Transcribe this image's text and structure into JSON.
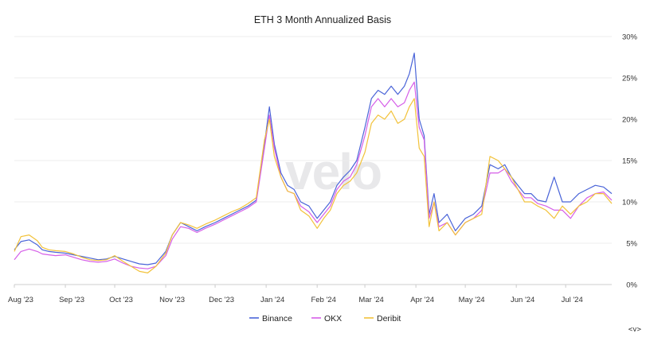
{
  "brand": {
    "watermark": "velo",
    "corner_label": "<v>"
  },
  "chart_data": {
    "type": "line",
    "title": "ETH 3 Month Annualized Basis",
    "xlabel": "",
    "ylabel": "",
    "ylim": [
      0,
      30
    ],
    "y_ticks": [
      "0%",
      "5%",
      "10%",
      "15%",
      "20%",
      "25%",
      "30%"
    ],
    "x_ticks": [
      {
        "label": "Aug '23",
        "date": "2023-08-01"
      },
      {
        "label": "Sep '23",
        "date": "2023-09-01"
      },
      {
        "label": "Oct '23",
        "date": "2023-10-01"
      },
      {
        "label": "Nov '23",
        "date": "2023-11-01"
      },
      {
        "label": "Dec '23",
        "date": "2023-12-01"
      },
      {
        "label": "Jan '24",
        "date": "2024-01-01"
      },
      {
        "label": "Feb '24",
        "date": "2024-02-01"
      },
      {
        "label": "Mar '24",
        "date": "2024-03-01"
      },
      {
        "label": "Apr '24",
        "date": "2024-04-01"
      },
      {
        "label": "May '24",
        "date": "2024-05-01"
      },
      {
        "label": "Jun '24",
        "date": "2024-06-01"
      },
      {
        "label": "Jul '24",
        "date": "2024-07-01"
      }
    ],
    "x_range": [
      "2023-08-01",
      "2024-07-29"
    ],
    "grid": true,
    "legend_position": "bottom-center",
    "x": [
      "2023-08-01",
      "2023-08-05",
      "2023-08-10",
      "2023-08-15",
      "2023-08-18",
      "2023-08-22",
      "2023-08-26",
      "2023-09-01",
      "2023-09-06",
      "2023-09-11",
      "2023-09-16",
      "2023-09-21",
      "2023-09-26",
      "2023-10-01",
      "2023-10-06",
      "2023-10-11",
      "2023-10-16",
      "2023-10-21",
      "2023-10-26",
      "2023-11-01",
      "2023-11-05",
      "2023-11-10",
      "2023-11-15",
      "2023-11-20",
      "2023-11-25",
      "2023-12-01",
      "2023-12-06",
      "2023-12-11",
      "2023-12-16",
      "2023-12-21",
      "2023-12-26",
      "2023-12-31",
      "2024-01-03",
      "2024-01-06",
      "2024-01-10",
      "2024-01-14",
      "2024-01-18",
      "2024-01-22",
      "2024-01-27",
      "2024-02-01",
      "2024-02-05",
      "2024-02-09",
      "2024-02-13",
      "2024-02-17",
      "2024-02-21",
      "2024-02-25",
      "2024-03-01",
      "2024-03-05",
      "2024-03-09",
      "2024-03-13",
      "2024-03-17",
      "2024-03-21",
      "2024-03-25",
      "2024-03-28",
      "2024-03-31",
      "2024-04-03",
      "2024-04-06",
      "2024-04-09",
      "2024-04-12",
      "2024-04-15",
      "2024-04-20",
      "2024-04-25",
      "2024-05-01",
      "2024-05-06",
      "2024-05-11",
      "2024-05-16",
      "2024-05-21",
      "2024-05-25",
      "2024-05-29",
      "2024-06-02",
      "2024-06-06",
      "2024-06-10",
      "2024-06-14",
      "2024-06-19",
      "2024-06-24",
      "2024-06-29",
      "2024-07-04",
      "2024-07-09",
      "2024-07-14",
      "2024-07-19",
      "2024-07-24",
      "2024-07-29"
    ],
    "series": [
      {
        "name": "Binance",
        "color": "#4a64d8",
        "values": [
          4.2,
          5.2,
          5.4,
          4.8,
          4.2,
          4.0,
          3.9,
          3.8,
          3.6,
          3.4,
          3.2,
          3.0,
          3.1,
          3.4,
          3.1,
          2.8,
          2.5,
          2.4,
          2.6,
          4.0,
          6.0,
          7.5,
          7.0,
          6.5,
          7.0,
          7.5,
          8.0,
          8.5,
          9.0,
          9.5,
          10.2,
          17.0,
          21.5,
          17.0,
          13.5,
          12.0,
          11.5,
          10.0,
          9.5,
          8.0,
          9.0,
          10.0,
          12.0,
          13.0,
          13.8,
          15.0,
          19.0,
          22.5,
          23.5,
          23.0,
          24.0,
          23.0,
          24.0,
          25.5,
          28.0,
          20.0,
          18.0,
          8.5,
          11.0,
          7.5,
          8.5,
          6.5,
          8.0,
          8.5,
          9.5,
          14.5,
          14.0,
          14.5,
          13.0,
          12.0,
          11.0,
          11.0,
          10.2,
          10.0,
          13.0,
          10.0,
          10.0,
          11.0,
          11.5,
          12.0,
          11.8,
          11.0
        ]
      },
      {
        "name": "OKX",
        "color": "#d55ee8",
        "values": [
          3.0,
          4.0,
          4.3,
          4.0,
          3.7,
          3.6,
          3.5,
          3.6,
          3.3,
          3.0,
          2.8,
          2.7,
          2.8,
          3.1,
          2.6,
          2.2,
          2.0,
          1.9,
          2.2,
          3.5,
          5.5,
          7.0,
          6.8,
          6.3,
          6.8,
          7.3,
          7.8,
          8.3,
          8.8,
          9.3,
          10.0,
          16.5,
          20.5,
          16.5,
          13.0,
          11.3,
          11.0,
          9.5,
          8.8,
          7.5,
          8.5,
          9.5,
          11.5,
          12.5,
          13.0,
          14.5,
          18.0,
          21.5,
          22.5,
          21.5,
          22.5,
          21.5,
          22.0,
          23.5,
          24.5,
          19.0,
          17.5,
          8.0,
          10.0,
          7.0,
          7.5,
          6.0,
          7.5,
          8.0,
          9.0,
          13.5,
          13.5,
          14.0,
          12.5,
          11.5,
          10.5,
          10.5,
          9.8,
          9.5,
          9.0,
          9.0,
          8.0,
          9.5,
          10.5,
          11.0,
          11.2,
          10.2
        ]
      },
      {
        "name": "Deribit",
        "color": "#f2c23a",
        "values": [
          4.0,
          5.8,
          6.0,
          5.3,
          4.5,
          4.2,
          4.1,
          4.0,
          3.7,
          3.3,
          3.0,
          2.9,
          3.0,
          3.5,
          2.8,
          2.2,
          1.6,
          1.4,
          2.2,
          3.8,
          6.0,
          7.5,
          7.2,
          6.8,
          7.3,
          7.8,
          8.3,
          8.8,
          9.2,
          9.8,
          10.5,
          17.5,
          20.0,
          15.5,
          13.0,
          11.3,
          11.0,
          9.0,
          8.3,
          6.8,
          8.0,
          9.0,
          11.0,
          12.0,
          12.5,
          13.5,
          16.0,
          19.5,
          20.5,
          20.0,
          21.0,
          19.5,
          20.0,
          21.5,
          22.5,
          16.5,
          15.5,
          7.0,
          10.0,
          6.5,
          7.5,
          6.0,
          7.5,
          8.0,
          8.5,
          15.5,
          15.0,
          14.0,
          13.0,
          11.5,
          10.0,
          10.0,
          9.5,
          9.0,
          8.0,
          9.5,
          8.5,
          9.5,
          10.0,
          11.0,
          11.0,
          9.8
        ]
      }
    ]
  }
}
